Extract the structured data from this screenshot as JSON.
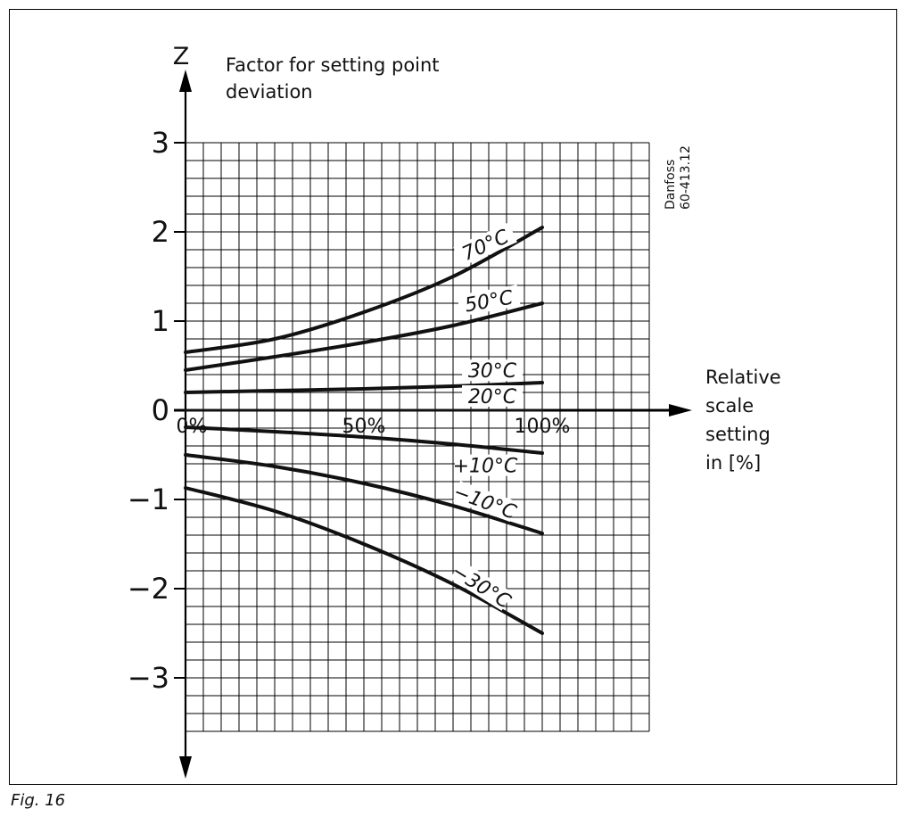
{
  "figure": {
    "caption": "Fig. 16"
  },
  "chart_data": {
    "type": "line",
    "title": "",
    "ylabel_symbol": "Z",
    "ylabel": [
      "Factor for setting point",
      "deviation"
    ],
    "xlabel": [
      "Relative",
      "scale",
      "setting",
      "in [%]"
    ],
    "watermark": [
      "Danfoss",
      "60-413.12"
    ],
    "xlim": [
      0,
      130
    ],
    "ylim": [
      -3.6,
      3
    ],
    "grid": true,
    "y_ticks": [
      3,
      2,
      1,
      0,
      -1,
      -2,
      -3
    ],
    "y_tick_labels": [
      "3",
      "2",
      "1",
      "0",
      "−1",
      "−2",
      "−3"
    ],
    "x_tick_labels": [
      {
        "x": 0,
        "label": "0%"
      },
      {
        "x": 50,
        "label": "50%"
      },
      {
        "x": 100,
        "label": "100%"
      }
    ],
    "series": [
      {
        "name": "70°C",
        "x": [
          0,
          25,
          50,
          75,
          100
        ],
        "values": [
          0.65,
          0.8,
          1.1,
          1.5,
          2.05
        ]
      },
      {
        "name": "50°C",
        "x": [
          0,
          25,
          50,
          75,
          100
        ],
        "values": [
          0.45,
          0.6,
          0.76,
          0.95,
          1.2
        ]
      },
      {
        "name": "30°C",
        "x": [
          0,
          25,
          50,
          75,
          100
        ],
        "values": [
          0.2,
          0.22,
          0.24,
          0.27,
          0.31
        ]
      },
      {
        "name": "20°C",
        "x": [
          0,
          25,
          50,
          75,
          100
        ],
        "values": [
          0,
          0,
          0,
          0,
          0
        ]
      },
      {
        "name": "+10°C",
        "x": [
          0,
          25,
          50,
          75,
          100
        ],
        "values": [
          -0.19,
          -0.24,
          -0.3,
          -0.38,
          -0.48
        ]
      },
      {
        "name": "−10°C",
        "x": [
          0,
          25,
          50,
          75,
          100
        ],
        "values": [
          -0.5,
          -0.63,
          -0.82,
          -1.07,
          -1.38
        ]
      },
      {
        "name": "−30°C",
        "x": [
          0,
          25,
          50,
          75,
          100
        ],
        "values": [
          -0.87,
          -1.13,
          -1.5,
          -1.95,
          -2.5
        ]
      }
    ]
  }
}
